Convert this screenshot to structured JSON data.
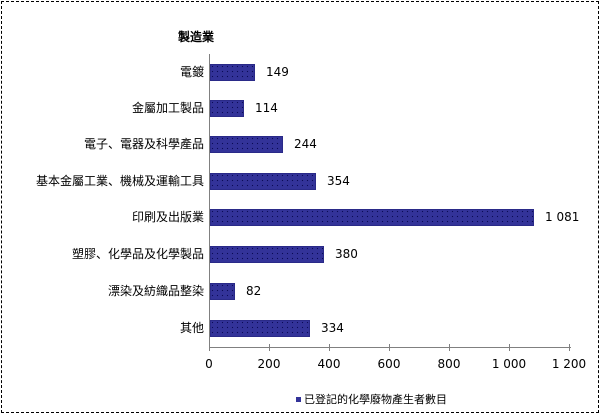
{
  "chart_data": {
    "type": "bar",
    "orientation": "horizontal",
    "title": "製造業",
    "categories": [
      "電鍍",
      "金屬加工製品",
      "電子、電器及科學產品",
      "基本金屬工業、機械及運輸工具",
      "印刷及出版業",
      "塑膠、化學品及化學製品",
      "漂染及紡織品整染",
      "其他"
    ],
    "values": [
      149,
      114,
      244,
      354,
      1081,
      380,
      82,
      334
    ],
    "value_labels": [
      "149",
      "114",
      "244",
      "354",
      "1 081",
      "380",
      "82",
      "334"
    ],
    "series": [
      {
        "name": "已登記的化學廢物產生者數目",
        "values": [
          149,
          114,
          244,
          354,
          1081,
          380,
          82,
          334
        ],
        "color": "#333399"
      }
    ],
    "xlabel": "",
    "ylabel": "",
    "xlim": [
      0,
      1200
    ],
    "xticks": [
      "0",
      "200",
      "400",
      "600",
      "800",
      "1 000",
      "1 200"
    ],
    "grid": false,
    "legend_position": "bottom"
  }
}
